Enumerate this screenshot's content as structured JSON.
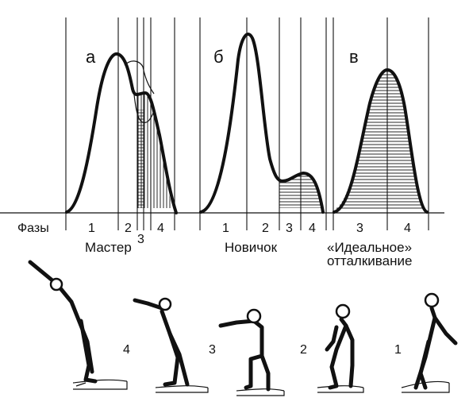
{
  "phases_label": "Фазы",
  "panels": [
    {
      "letter": "а",
      "caption": "Мастер",
      "phases": [
        "1",
        "2",
        "3",
        "4"
      ]
    },
    {
      "letter": "б",
      "caption": "Новичок",
      "phases": [
        "1",
        "2",
        "3",
        "4"
      ]
    },
    {
      "letter": "в",
      "caption_line1": "«Идеальное»",
      "caption_line2": "отталкивание",
      "phases": [
        "3",
        "4"
      ]
    }
  ],
  "figure_numbers": [
    "4",
    "3",
    "2",
    "1"
  ]
}
